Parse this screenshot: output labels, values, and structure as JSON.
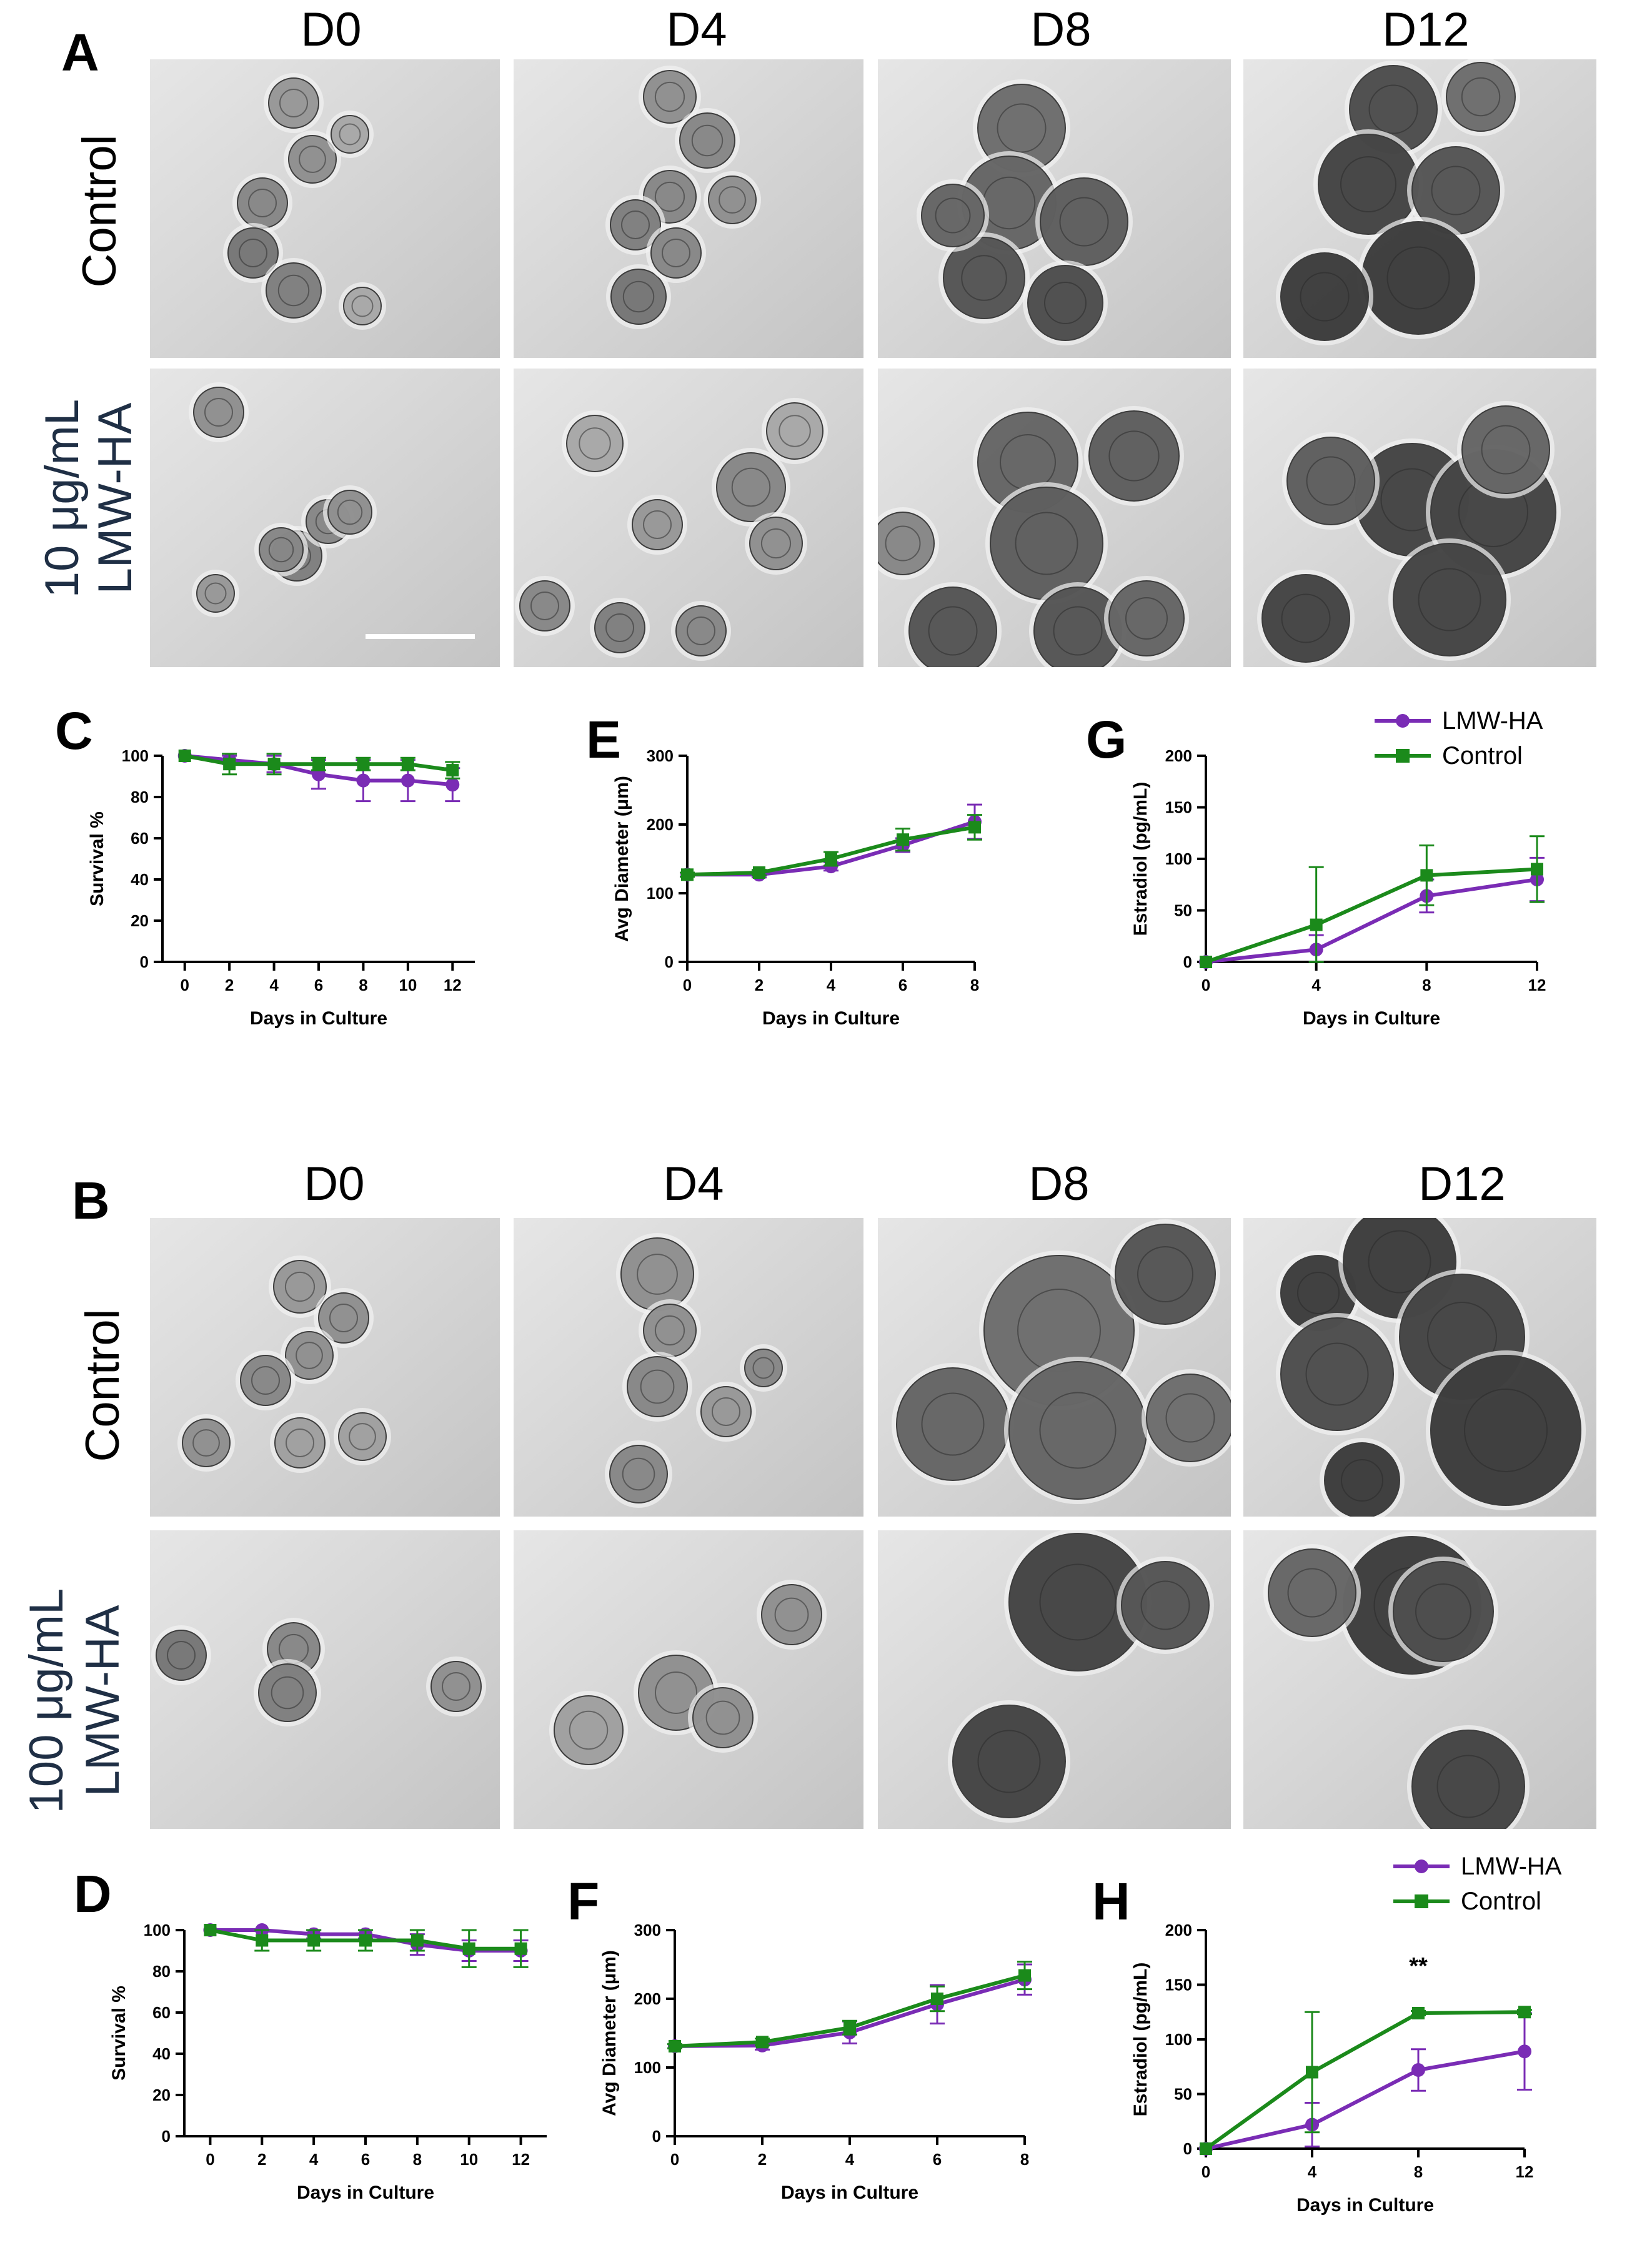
{
  "colors": {
    "lmw": "#7a2cb5",
    "control": "#1b8a1b",
    "axis": "#000000",
    "micro_bg": "#d8d8d8",
    "row_label_dark": "#1f2f45"
  },
  "section_a": {
    "letter": "A",
    "days": [
      "D0",
      "D4",
      "D8",
      "D12"
    ],
    "row1_label": "Control",
    "row2_label_line1": "10 μg/mL",
    "row2_label_line2": "LMW-HA"
  },
  "section_b": {
    "letter": "B",
    "days": [
      "D0",
      "D4",
      "D8",
      "D12"
    ],
    "row1_label": "Control",
    "row2_label_line1": "100 μg/mL",
    "row2_label_line2": "LMW-HA"
  },
  "legend": {
    "lmw_label": "LMW-HA",
    "control_label": "Control"
  },
  "chart_data": [
    {
      "id": "C",
      "type": "line",
      "letter": "C",
      "xlabel": "Days in Culture",
      "ylabel": "Survival %",
      "xlim": [
        -1,
        13
      ],
      "ylim": [
        0,
        100
      ],
      "xticks": [
        0,
        2,
        4,
        6,
        8,
        10,
        12
      ],
      "yticks": [
        0,
        20,
        40,
        60,
        80,
        100
      ],
      "series": [
        {
          "name": "LMW-HA",
          "x": [
            0,
            2,
            4,
            6,
            8,
            10,
            12
          ],
          "y": [
            100,
            98,
            96,
            91,
            88,
            88,
            86
          ],
          "err": [
            0,
            2,
            4,
            7,
            10,
            10,
            8
          ]
        },
        {
          "name": "Control",
          "x": [
            0,
            2,
            4,
            6,
            8,
            10,
            12
          ],
          "y": [
            100,
            96,
            96,
            96,
            96,
            96,
            93
          ],
          "err": [
            0,
            5,
            5,
            3,
            3,
            3,
            4
          ]
        }
      ],
      "annotations": []
    },
    {
      "id": "E",
      "type": "line",
      "letter": "E",
      "xlabel": "Days in Culture",
      "ylabel": "Avg Diameter (μm)",
      "xlim": [
        0,
        8
      ],
      "ylim": [
        0,
        300
      ],
      "xticks": [
        0,
        2,
        4,
        6,
        8
      ],
      "yticks": [
        0,
        100,
        200,
        300
      ],
      "series": [
        {
          "name": "LMW-HA",
          "x": [
            0,
            2,
            4,
            6,
            8
          ],
          "y": [
            127,
            127,
            139,
            170,
            204
          ],
          "err": [
            3,
            4,
            6,
            10,
            25
          ]
        },
        {
          "name": "Control",
          "x": [
            0,
            2,
            4,
            6,
            8
          ],
          "y": [
            127,
            130,
            150,
            178,
            196
          ],
          "err": [
            3,
            4,
            10,
            16,
            18
          ]
        }
      ],
      "annotations": []
    },
    {
      "id": "G",
      "type": "line",
      "letter": "G",
      "xlabel": "Days in Culture",
      "ylabel": "Estradiol (pg/mL)",
      "xlim": [
        0,
        12
      ],
      "ylim": [
        0,
        200
      ],
      "xticks": [
        0,
        4,
        8,
        12
      ],
      "yticks": [
        0,
        50,
        100,
        150,
        200
      ],
      "series": [
        {
          "name": "LMW-HA",
          "x": [
            0,
            4,
            8,
            12
          ],
          "y": [
            0,
            12,
            64,
            80
          ],
          "err": [
            0,
            14,
            16,
            21
          ]
        },
        {
          "name": "Control",
          "x": [
            0,
            4,
            8,
            12
          ],
          "y": [
            0,
            36,
            84,
            90
          ],
          "err": [
            0,
            56,
            29,
            32
          ]
        }
      ],
      "annotations": []
    },
    {
      "id": "D",
      "type": "line",
      "letter": "D",
      "xlabel": "Days in Culture",
      "ylabel": "Survival %",
      "xlim": [
        -1,
        13
      ],
      "ylim": [
        0,
        100
      ],
      "xticks": [
        0,
        2,
        4,
        6,
        8,
        10,
        12
      ],
      "yticks": [
        0,
        20,
        40,
        60,
        80,
        100
      ],
      "series": [
        {
          "name": "LMW-HA",
          "x": [
            0,
            2,
            4,
            6,
            8,
            10,
            12
          ],
          "y": [
            100,
            100,
            98,
            98,
            93,
            90,
            90
          ],
          "err": [
            0,
            0,
            2,
            2,
            5,
            5,
            5
          ]
        },
        {
          "name": "Control",
          "x": [
            0,
            2,
            4,
            6,
            8,
            10,
            12
          ],
          "y": [
            100,
            95,
            95,
            95,
            95,
            91,
            91
          ],
          "err": [
            0,
            5,
            5,
            5,
            5,
            9,
            9
          ]
        }
      ],
      "annotations": []
    },
    {
      "id": "F",
      "type": "line",
      "letter": "F",
      "xlabel": "Days in Culture",
      "ylabel": "Avg Diameter (μm)",
      "xlim": [
        0,
        8
      ],
      "ylim": [
        0,
        300
      ],
      "xticks": [
        0,
        2,
        4,
        6,
        8
      ],
      "yticks": [
        0,
        100,
        200,
        300
      ],
      "series": [
        {
          "name": "LMW-HA",
          "x": [
            0,
            2,
            4,
            6,
            8
          ],
          "y": [
            131,
            132,
            151,
            192,
            228
          ],
          "err": [
            3,
            6,
            16,
            28,
            22
          ]
        },
        {
          "name": "Control",
          "x": [
            0,
            2,
            4,
            6,
            8
          ],
          "y": [
            131,
            137,
            158,
            200,
            234
          ],
          "err": [
            3,
            5,
            10,
            18,
            20
          ]
        }
      ],
      "annotations": []
    },
    {
      "id": "H",
      "type": "line",
      "letter": "H",
      "xlabel": "Days in Culture",
      "ylabel": "Estradiol (pg/mL)",
      "xlim": [
        0,
        12
      ],
      "ylim": [
        0,
        200
      ],
      "xticks": [
        0,
        4,
        8,
        12
      ],
      "yticks": [
        0,
        50,
        100,
        150,
        200
      ],
      "series": [
        {
          "name": "LMW-HA",
          "x": [
            0,
            4,
            8,
            12
          ],
          "y": [
            0,
            22,
            72,
            89
          ],
          "err": [
            0,
            20,
            19,
            35
          ]
        },
        {
          "name": "Control",
          "x": [
            0,
            4,
            8,
            12
          ],
          "y": [
            0,
            70,
            124,
            125
          ],
          "err": [
            0,
            55,
            2,
            2
          ]
        }
      ],
      "annotations": [
        {
          "x": 8,
          "y": 160,
          "text": "**"
        }
      ]
    }
  ]
}
